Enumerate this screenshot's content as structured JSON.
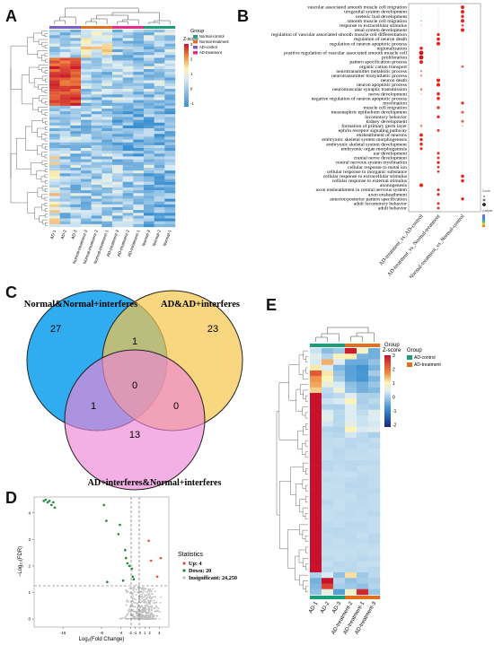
{
  "panels": {
    "a": "A",
    "b": "B",
    "c": "C",
    "d": "D",
    "e": "E"
  },
  "panelA": {
    "legend_title_group": "Group",
    "legend_title_z": "Z-score",
    "groups": [
      {
        "name": "Normal-control",
        "color": "#1b9e77"
      },
      {
        "name": "Normal-treatment",
        "color": "#e0701f"
      },
      {
        "name": "AD-control",
        "color": "#7b5fc9"
      },
      {
        "name": "AD-treatment",
        "color": "#e7298a"
      }
    ],
    "z_ticks": [
      "3",
      "2",
      "1",
      "0",
      "-1"
    ],
    "columns": [
      "AD-1",
      "AD-2",
      "AD-3",
      "Normal-treatment-3",
      "Normal-treatment-2",
      "Normal-treatment-1",
      "AD-treatment-3",
      "AD-treatment-2",
      "AD-treatment-1",
      "Normal-3",
      "Normal-2",
      "Normal-1"
    ]
  },
  "panelB": {
    "terms": [
      "vascular associated smooth muscle cell migration",
      "urogenital system development",
      "ureteric bud development",
      "smooth muscle cell migration",
      "response to extracellular stimulus",
      "renal system development",
      "regulation of vascular associated smooth muscle cell differentiation",
      "regulation of neuron death",
      "regulation of neuron apoptotic process",
      "regionalization",
      "positive regulation of vascular associated smooth muscle cell",
      "proliferation",
      "pattern specification process",
      "organic cation transport",
      "neurotransmitter metabolic process",
      "neurotransmitter biosynthetic process",
      "neuron death",
      "neuron apoptotic process",
      "neuromuscular synaptic transmission",
      "nerve development",
      "negative regulation of neuron apoptotic process",
      "myelination",
      "muscle cell migration",
      "mesonephric epithelium development",
      "locomotory behavior",
      "kidney development",
      "formation of primary germ layer",
      "ephrin receptor signaling pathway",
      "ensheathment of neurons",
      "embryonic skeletal system morphogenesis",
      "embryonic skeletal system development",
      "embryonic organ morphogenesis",
      "ear development",
      "cranial nerve development",
      "central nervous system myelination",
      "cellular response to metal ion",
      "cellular response to inorganic substance",
      "cellular response to extracellular stimulus",
      "cellular response to external stimulus",
      "axonogenesis",
      "axon ensheathment in central nervous system",
      "axon ensheathment",
      "anterior/posterior pattern specification",
      "adult locomotory behavior",
      "adult behavior"
    ],
    "comparisons": [
      "AD-treatment_vs_AD-control",
      "AD-treatment_vs_Normal-treatment",
      "Normal-treatment_vs_Normal-control"
    ],
    "legend_count_title": "Count",
    "legend_padjust_title": "p.adjust"
  },
  "panelC": {
    "set1_label": "Normal&Normal+interferes",
    "set2_label": "AD&AD+interferes",
    "set3_label": "AD+interferes&Normal+interferes",
    "only1": "27",
    "only2": "23",
    "only3": "13",
    "s12": "1",
    "s13": "1",
    "s23": "0",
    "s123": "0",
    "colors": {
      "set1": "#1aa3f0",
      "set2": "#f7c44a",
      "set3": "#ee86d6"
    }
  },
  "panelD": {
    "ylabel": "−Log₁₀(FDR)",
    "xlabel": "Log₂(Fold Change)",
    "xticks": [
      "-16",
      "-8",
      "-4",
      "-2",
      "-1",
      "0",
      "1",
      "2",
      "4"
    ],
    "yticks": [
      "0",
      "1",
      "2",
      "3",
      "4"
    ],
    "legend_title": "Statistics",
    "up_label": "Up: 4",
    "down_label": "Down: 20",
    "insig_label": "Insignificant: 24,250",
    "colors": {
      "up": "#e8483e",
      "down": "#1c8a3a",
      "insig": "#bdbdbd"
    }
  },
  "panelE": {
    "legend_title_group": "Group",
    "legend_title_z": "Z-score",
    "groups": [
      {
        "name": "AD-control",
        "color": "#1b9e77"
      },
      {
        "name": "AD-treatment",
        "color": "#e0701f"
      }
    ],
    "z_ticks": [
      "3",
      "2",
      "1",
      "0",
      "-1",
      "-2"
    ],
    "columns": [
      "AD-1",
      "AD-2",
      "AD-3",
      "AD-treatment-2",
      "AD-treatment-1",
      "AD-treatment-3"
    ]
  }
}
